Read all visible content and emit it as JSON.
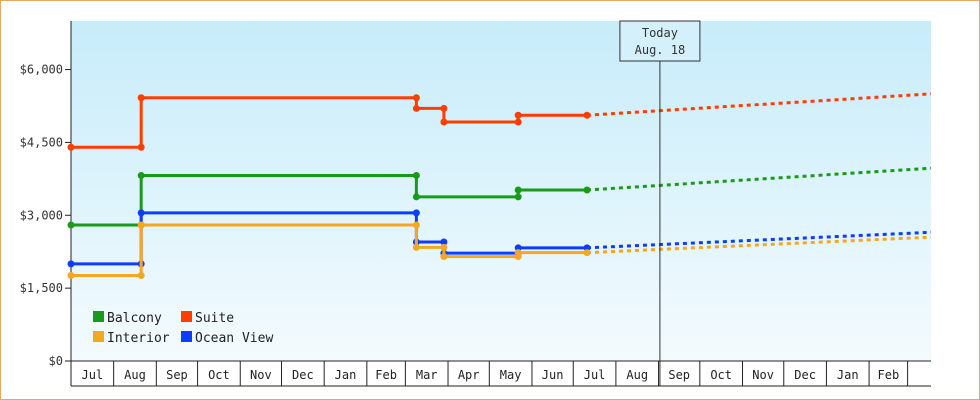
{
  "chart_data": {
    "type": "line",
    "y_axis": {
      "min": 0,
      "max": 7000,
      "ticks": [
        0,
        1500,
        3000,
        4500,
        6000
      ],
      "tick_labels": [
        "$0",
        "$1,500",
        "$3,000",
        "$4,500",
        "$6,000"
      ]
    },
    "x_axis": {
      "month_labels": [
        "Jul",
        "Aug",
        "Sep",
        "Oct",
        "Nov",
        "Dec",
        "Jan",
        "Feb",
        "Mar",
        "Apr",
        "May",
        "Jun",
        "Jul",
        "Aug",
        "Sep",
        "Oct",
        "Nov",
        "Dec",
        "Jan",
        "Feb"
      ],
      "month_start_days": [
        -15,
        16,
        47,
        77,
        108,
        138,
        169,
        200,
        228,
        259,
        289,
        320,
        350,
        381,
        412,
        442,
        473,
        503,
        534,
        565,
        593
      ],
      "day_zero": "Jul 1",
      "range_days": [
        -15,
        610
      ]
    },
    "today_marker": {
      "line1": "Today",
      "line2": "Aug. 18",
      "day": 413
    },
    "legend": [
      {
        "name": "Balcony",
        "color": "#1a9a1a"
      },
      {
        "name": "Suite",
        "color": "#ff3d00"
      },
      {
        "name": "Interior",
        "color": "#f5a623"
      },
      {
        "name": "Ocean View",
        "color": "#0f3dff"
      }
    ],
    "series": [
      {
        "name": "Suite",
        "color": "#ff3d00",
        "actual": [
          [
            -15,
            4400
          ],
          [
            36,
            4400
          ],
          [
            36,
            5420
          ],
          [
            236,
            5420
          ],
          [
            236,
            5200
          ],
          [
            256,
            5200
          ],
          [
            256,
            4920
          ],
          [
            310,
            4920
          ],
          [
            310,
            5060
          ],
          [
            360,
            5060
          ]
        ],
        "projected": [
          [
            360,
            5060
          ],
          [
            610,
            5500
          ]
        ]
      },
      {
        "name": "Balcony",
        "color": "#1a9a1a",
        "actual": [
          [
            -15,
            2800
          ],
          [
            36,
            2800
          ],
          [
            36,
            3820
          ],
          [
            236,
            3820
          ],
          [
            236,
            3380
          ],
          [
            310,
            3380
          ],
          [
            310,
            3520
          ],
          [
            360,
            3520
          ]
        ],
        "projected": [
          [
            360,
            3520
          ],
          [
            610,
            3970
          ]
        ]
      },
      {
        "name": "Ocean View",
        "color": "#0f3dff",
        "actual": [
          [
            -15,
            2000
          ],
          [
            36,
            2000
          ],
          [
            36,
            3050
          ],
          [
            236,
            3050
          ],
          [
            236,
            2450
          ],
          [
            256,
            2450
          ],
          [
            256,
            2220
          ],
          [
            310,
            2220
          ],
          [
            310,
            2330
          ],
          [
            360,
            2330
          ]
        ],
        "projected": [
          [
            360,
            2330
          ],
          [
            610,
            2650
          ]
        ]
      },
      {
        "name": "Interior",
        "color": "#f5a623",
        "actual": [
          [
            -15,
            1760
          ],
          [
            36,
            1760
          ],
          [
            36,
            2800
          ],
          [
            236,
            2800
          ],
          [
            236,
            2340
          ],
          [
            256,
            2340
          ],
          [
            256,
            2150
          ],
          [
            310,
            2150
          ],
          [
            310,
            2230
          ],
          [
            360,
            2230
          ]
        ],
        "projected": [
          [
            360,
            2230
          ],
          [
            610,
            2550
          ]
        ]
      }
    ],
    "grid": false,
    "legend_position": "bottom-left"
  }
}
